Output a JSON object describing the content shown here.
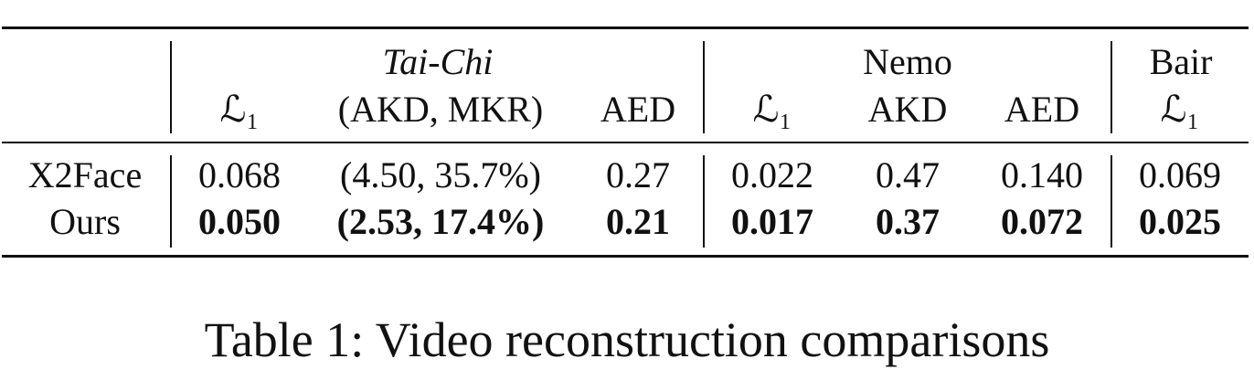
{
  "table": {
    "groups": [
      "Tai-Chi",
      "Nemo",
      "Bair"
    ],
    "columns": [
      "ℒ₁",
      "(AKD, MKR)",
      "AED",
      "ℒ₁",
      "AKD",
      "AED",
      "ℒ₁"
    ],
    "rows": [
      {
        "label": "X2Face",
        "cells": [
          "0.068",
          "(4.50, 35.7%)",
          "0.27",
          "0.022",
          "0.47",
          "0.140",
          "0.069"
        ]
      },
      {
        "label": "Ours",
        "cells": [
          "0.050",
          "(2.53, 17.4%)",
          "0.21",
          "0.017",
          "0.37",
          "0.072",
          "0.025"
        ]
      }
    ]
  },
  "caption": "Table 1: Video reconstruction comparisons"
}
